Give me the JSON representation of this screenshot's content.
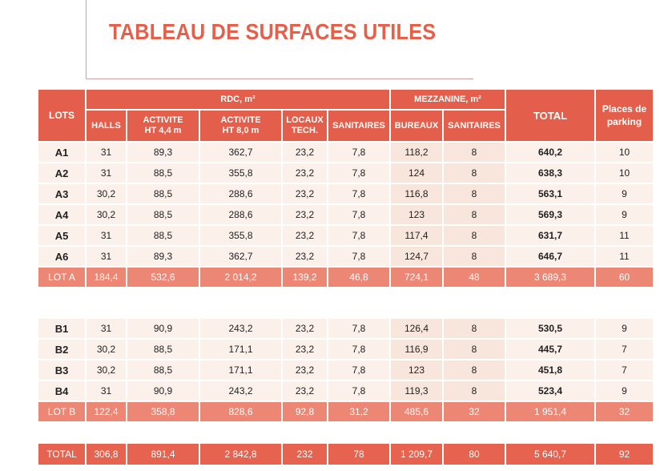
{
  "title": "TABLEAU DE SURFACES UTILES",
  "header": {
    "lots": "LOTS",
    "rdc": "RDC, m²",
    "mezzanine": "MEZZANINE, m²",
    "total": "TOTAL",
    "parking": "Places de parking",
    "cols": [
      "HALLS",
      "ACTIVITE HT 4,4 m",
      "ACTIVITE HT 8,0 m",
      "LOCAUX TECH.",
      "SANITAIRES",
      "BUREAUX",
      "SANITAIRES"
    ]
  },
  "rows_a": [
    [
      "A1",
      "31",
      "89,3",
      "362,7",
      "23,2",
      "7,8",
      "118,2",
      "8",
      "640,2",
      "10"
    ],
    [
      "A2",
      "31",
      "88,5",
      "355,8",
      "23,2",
      "7,8",
      "124",
      "8",
      "638,3",
      "10"
    ],
    [
      "A3",
      "30,2",
      "88,5",
      "288,6",
      "23,2",
      "7,8",
      "116,8",
      "8",
      "563,1",
      "9"
    ],
    [
      "A4",
      "30,2",
      "88,5",
      "288,6",
      "23,2",
      "7,8",
      "123",
      "8",
      "569,3",
      "9"
    ],
    [
      "A5",
      "31",
      "88,5",
      "355,8",
      "23,2",
      "7,8",
      "117,4",
      "8",
      "631,7",
      "11"
    ],
    [
      "A6",
      "31",
      "89,3",
      "362,7",
      "23,2",
      "7,8",
      "124,7",
      "8",
      "646,7",
      "11"
    ]
  ],
  "lot_a": [
    "LOT A",
    "184,4",
    "532,6",
    "2 014,2",
    "139,2",
    "46,8",
    "724,1",
    "48",
    "3 689,3",
    "60"
  ],
  "rows_b": [
    [
      "B1",
      "31",
      "90,9",
      "243,2",
      "23,2",
      "7,8",
      "126,4",
      "8",
      "530,5",
      "9"
    ],
    [
      "B2",
      "30,2",
      "88,5",
      "171,1",
      "23,2",
      "7,8",
      "116,9",
      "8",
      "445,7",
      "7"
    ],
    [
      "B3",
      "30,2",
      "88,5",
      "171,1",
      "23,2",
      "7,8",
      "123",
      "8",
      "451,8",
      "7"
    ],
    [
      "B4",
      "31",
      "90,9",
      "243,2",
      "23,2",
      "7,8",
      "119,3",
      "8",
      "523,4",
      "9"
    ]
  ],
  "lot_b": [
    "LOT B",
    "122,4",
    "358,8",
    "828,6",
    "92,8",
    "31,2",
    "485,6",
    "32",
    "1 951,4",
    "32"
  ],
  "total": [
    "TOTAL",
    "306,8",
    "891,4",
    "2 842,8",
    "232",
    "78",
    "1 209,7",
    "80",
    "5 640,7",
    "92"
  ],
  "colors": {
    "header": "#e35f4b",
    "subtotal": "#ec8775",
    "total": "#e5634f",
    "row": "#fbf0ea"
  }
}
